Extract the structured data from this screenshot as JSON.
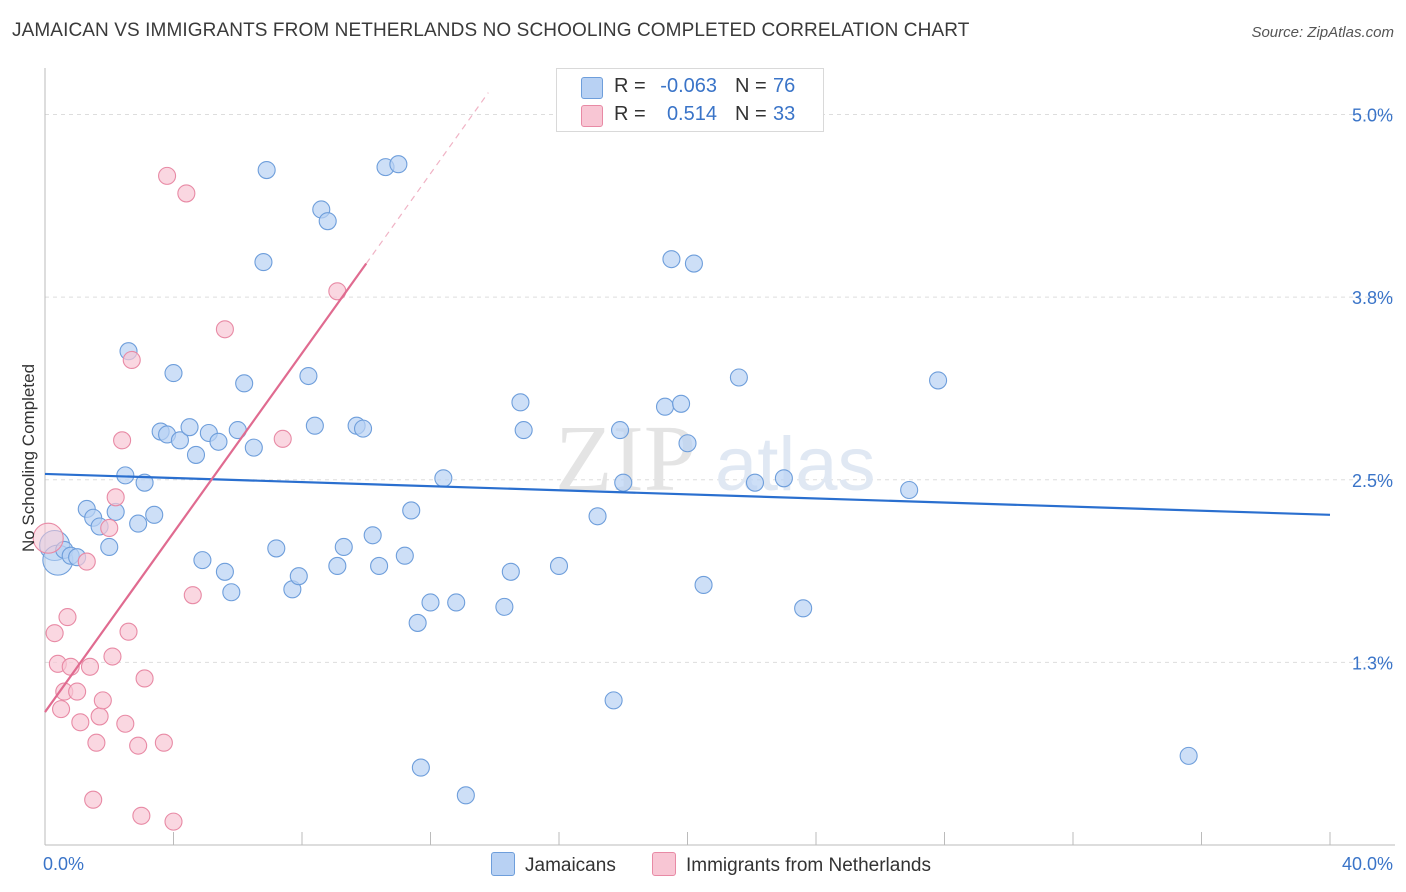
{
  "title": "JAMAICAN VS IMMIGRANTS FROM NETHERLANDS NO SCHOOLING COMPLETED CORRELATION CHART",
  "source": "Source: ZipAtlas.com",
  "watermark": "ZIPatlas",
  "legend": {
    "series1": {
      "r_label": "R =",
      "r_value": "-0.063",
      "n_label": "N =",
      "n_value": "76"
    },
    "series2": {
      "r_label": "R =",
      "r_value": "0.514",
      "n_label": "N =",
      "n_value": "33"
    }
  },
  "bottom_legend": {
    "series1": "Jamaicans",
    "series2": "Immigrants from Netherlands"
  },
  "colors": {
    "blue_fill": "#b8d1f3",
    "blue_stroke": "#6e9edb",
    "blue_line": "#2a6fcf",
    "pink_fill": "#f8c6d4",
    "pink_stroke": "#e88aa5",
    "pink_line": "#e06b90",
    "axis_text": "#3a74c8",
    "grid": "#dddddd"
  },
  "chart_data": {
    "type": "scatter",
    "title": "JAMAICAN VS IMMIGRANTS FROM NETHERLANDS NO SCHOOLING COMPLETED CORRELATION CHART",
    "xlabel": "",
    "ylabel": "No Schooling Completed",
    "xlim": [
      0,
      40
    ],
    "ylim": [
      0,
      5.25
    ],
    "x_tick_labels": [
      "0.0%",
      "40.0%"
    ],
    "y_ticks": [
      1.25,
      2.5,
      3.75,
      5.0
    ],
    "y_tick_labels": [
      "1.3%",
      "2.5%",
      "3.8%",
      "5.0%"
    ],
    "series": [
      {
        "name": "Jamaicans",
        "r": -0.063,
        "n": 76,
        "trend": {
          "x": [
            0,
            40
          ],
          "y": [
            2.54,
            2.26
          ]
        },
        "points": [
          {
            "x": 0.3,
            "y": 2.05,
            "big": true
          },
          {
            "x": 0.4,
            "y": 1.95,
            "big": true
          },
          {
            "x": 0.6,
            "y": 2.02
          },
          {
            "x": 0.8,
            "y": 1.98
          },
          {
            "x": 1.0,
            "y": 1.97
          },
          {
            "x": 1.3,
            "y": 2.3
          },
          {
            "x": 1.5,
            "y": 2.24
          },
          {
            "x": 1.7,
            "y": 2.18
          },
          {
            "x": 2.0,
            "y": 2.04
          },
          {
            "x": 2.2,
            "y": 2.28
          },
          {
            "x": 2.5,
            "y": 2.53
          },
          {
            "x": 2.6,
            "y": 3.38
          },
          {
            "x": 2.9,
            "y": 2.2
          },
          {
            "x": 3.1,
            "y": 2.48
          },
          {
            "x": 3.4,
            "y": 2.26
          },
          {
            "x": 3.6,
            "y": 2.83
          },
          {
            "x": 3.8,
            "y": 2.81
          },
          {
            "x": 4.0,
            "y": 3.23
          },
          {
            "x": 4.2,
            "y": 2.77
          },
          {
            "x": 4.5,
            "y": 2.86
          },
          {
            "x": 4.7,
            "y": 2.67
          },
          {
            "x": 4.9,
            "y": 1.95
          },
          {
            "x": 5.1,
            "y": 2.82
          },
          {
            "x": 5.4,
            "y": 2.76
          },
          {
            "x": 5.6,
            "y": 1.87
          },
          {
            "x": 5.8,
            "y": 1.73
          },
          {
            "x": 6.0,
            "y": 2.84
          },
          {
            "x": 6.2,
            "y": 3.16
          },
          {
            "x": 6.5,
            "y": 2.72
          },
          {
            "x": 6.8,
            "y": 3.99
          },
          {
            "x": 6.9,
            "y": 4.62
          },
          {
            "x": 7.2,
            "y": 2.03
          },
          {
            "x": 7.7,
            "y": 1.75
          },
          {
            "x": 7.9,
            "y": 1.84
          },
          {
            "x": 8.2,
            "y": 3.21
          },
          {
            "x": 8.4,
            "y": 2.87
          },
          {
            "x": 8.6,
            "y": 4.35
          },
          {
            "x": 8.8,
            "y": 4.27
          },
          {
            "x": 9.1,
            "y": 1.91
          },
          {
            "x": 9.3,
            "y": 2.04
          },
          {
            "x": 9.7,
            "y": 2.87
          },
          {
            "x": 9.9,
            "y": 2.85
          },
          {
            "x": 10.2,
            "y": 2.12
          },
          {
            "x": 10.4,
            "y": 1.91
          },
          {
            "x": 10.6,
            "y": 4.64
          },
          {
            "x": 11.0,
            "y": 4.66
          },
          {
            "x": 11.2,
            "y": 1.98
          },
          {
            "x": 11.4,
            "y": 2.29
          },
          {
            "x": 11.6,
            "y": 1.52
          },
          {
            "x": 12.0,
            "y": 1.66
          },
          {
            "x": 12.4,
            "y": 2.51
          },
          {
            "x": 12.8,
            "y": 1.66
          },
          {
            "x": 13.1,
            "y": 0.34
          },
          {
            "x": 14.3,
            "y": 1.63
          },
          {
            "x": 14.5,
            "y": 1.87
          },
          {
            "x": 14.8,
            "y": 3.03
          },
          {
            "x": 14.9,
            "y": 2.84
          },
          {
            "x": 16.0,
            "y": 1.91
          },
          {
            "x": 17.2,
            "y": 2.25
          },
          {
            "x": 17.7,
            "y": 0.99
          },
          {
            "x": 17.9,
            "y": 2.84
          },
          {
            "x": 18.0,
            "y": 2.48
          },
          {
            "x": 19.3,
            "y": 3.0
          },
          {
            "x": 19.5,
            "y": 4.01
          },
          {
            "x": 19.8,
            "y": 3.02
          },
          {
            "x": 20.0,
            "y": 2.75
          },
          {
            "x": 20.2,
            "y": 3.98
          },
          {
            "x": 20.5,
            "y": 1.78
          },
          {
            "x": 21.6,
            "y": 3.2
          },
          {
            "x": 22.1,
            "y": 2.48
          },
          {
            "x": 23.0,
            "y": 2.51
          },
          {
            "x": 23.6,
            "y": 1.62
          },
          {
            "x": 26.9,
            "y": 2.43
          },
          {
            "x": 27.8,
            "y": 3.18
          },
          {
            "x": 35.6,
            "y": 0.61
          },
          {
            "x": 11.7,
            "y": 0.53
          }
        ]
      },
      {
        "name": "Immigrants from Netherlands",
        "r": 0.514,
        "n": 33,
        "trend": {
          "x": [
            0,
            10
          ],
          "y": [
            0.91,
            3.98
          ]
        },
        "trend_extension": {
          "x": [
            10,
            13.8
          ],
          "y": [
            3.98,
            5.15
          ]
        },
        "points": [
          {
            "x": 0.1,
            "y": 2.1,
            "big": true
          },
          {
            "x": 0.3,
            "y": 1.45
          },
          {
            "x": 0.4,
            "y": 1.24
          },
          {
            "x": 0.5,
            "y": 0.93
          },
          {
            "x": 0.6,
            "y": 1.05
          },
          {
            "x": 0.7,
            "y": 1.56
          },
          {
            "x": 0.8,
            "y": 1.22
          },
          {
            "x": 1.0,
            "y": 1.05
          },
          {
            "x": 1.1,
            "y": 0.84
          },
          {
            "x": 1.3,
            "y": 1.94
          },
          {
            "x": 1.4,
            "y": 1.22
          },
          {
            "x": 1.5,
            "y": 0.31
          },
          {
            "x": 1.6,
            "y": 0.7
          },
          {
            "x": 1.7,
            "y": 0.88
          },
          {
            "x": 1.8,
            "y": 0.99
          },
          {
            "x": 2.0,
            "y": 2.17
          },
          {
            "x": 2.1,
            "y": 1.29
          },
          {
            "x": 2.2,
            "y": 2.38
          },
          {
            "x": 2.4,
            "y": 2.77
          },
          {
            "x": 2.5,
            "y": 0.83
          },
          {
            "x": 2.6,
            "y": 1.46
          },
          {
            "x": 2.7,
            "y": 3.32
          },
          {
            "x": 2.9,
            "y": 0.68
          },
          {
            "x": 3.0,
            "y": 0.2
          },
          {
            "x": 3.1,
            "y": 1.14
          },
          {
            "x": 3.7,
            "y": 0.7
          },
          {
            "x": 3.8,
            "y": 4.58
          },
          {
            "x": 4.0,
            "y": 0.16
          },
          {
            "x": 4.4,
            "y": 4.46
          },
          {
            "x": 4.6,
            "y": 1.71
          },
          {
            "x": 5.6,
            "y": 3.53
          },
          {
            "x": 7.4,
            "y": 2.78
          },
          {
            "x": 9.1,
            "y": 3.79
          }
        ]
      }
    ]
  }
}
